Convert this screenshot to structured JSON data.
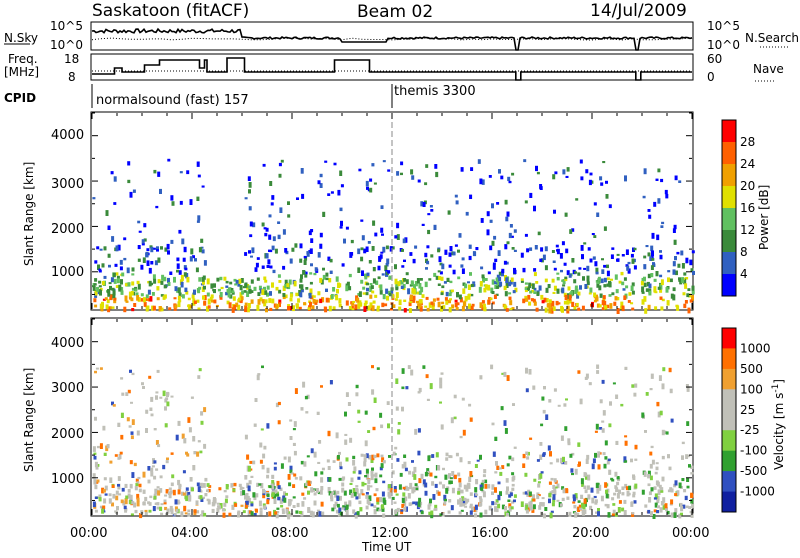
{
  "header": {
    "station": "Saskatoon (fitACF)",
    "beam": "Beam 02",
    "date": "14/Jul/2009"
  },
  "top_panels": {
    "nsky_label": "N.Sky",
    "nsky_ticks": [
      "10^5",
      "10^0"
    ],
    "nsearch_label": "N.Search",
    "nsearch_ticks": [
      "10^5",
      "10^0"
    ],
    "freq_label_1": "Freq.",
    "freq_label_2": "[MHz]",
    "freq_ticks": [
      "18",
      "8"
    ],
    "nave_label": "Nave",
    "nave_ticks": [
      "60",
      "0"
    ],
    "cpid_label": "CPID",
    "cpid_segments": [
      {
        "label": "normalsound (fast) 157",
        "start_hour": 0
      },
      {
        "label": "themis 3300",
        "start_hour": 12
      }
    ]
  },
  "chart_data": [
    {
      "type": "heatmap",
      "name": "power",
      "ylabel": "Slant Range [km]",
      "ylim": [
        180,
        4500
      ],
      "yticks": [
        "4000",
        "3000",
        "2000",
        "1000"
      ],
      "xlim": [
        0,
        24
      ],
      "colorbar": {
        "label": "Power [dB]",
        "ticks": [
          "28",
          "24",
          "20",
          "16",
          "12",
          "8",
          "4"
        ],
        "colors": [
          "#0000ff",
          "#3060c0",
          "#3a8a3a",
          "#60c060",
          "#e0e000",
          "#f0a000",
          "#ff6000",
          "#ff0000"
        ]
      }
    },
    {
      "type": "heatmap",
      "name": "velocity",
      "ylabel": "Slant Range [km]",
      "ylim": [
        180,
        4500
      ],
      "yticks": [
        "4000",
        "3000",
        "2000",
        "1000"
      ],
      "xlim": [
        0,
        24
      ],
      "colorbar": {
        "label": "Velocity [m s^-1]",
        "ticks": [
          "1000",
          "500",
          "100",
          "25",
          "-25",
          "-100",
          "-500",
          "-1000"
        ],
        "colors": [
          "#1020a0",
          "#3050c0",
          "#30a030",
          "#80d040",
          "#c0c0b8",
          "#c0c0b8",
          "#f0a030",
          "#ff7000",
          "#ff0000"
        ]
      }
    }
  ],
  "x_axis": {
    "ticks": [
      "00:00",
      "04:00",
      "08:00",
      "12:00",
      "16:00",
      "20:00",
      "00:00"
    ],
    "label": "Time UT"
  }
}
